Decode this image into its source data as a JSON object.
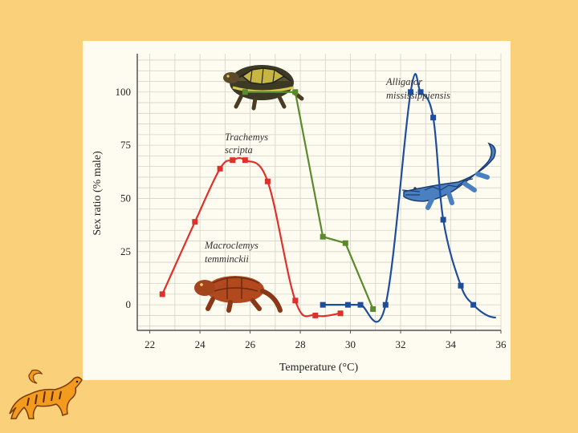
{
  "chart_data": {
    "type": "line",
    "title": "",
    "xlabel": "Temperature (°C)",
    "ylabel": "Sex ratio (% male)",
    "xlim": [
      21.5,
      36
    ],
    "ylim": [
      -12,
      118
    ],
    "xticks": [
      22,
      24,
      26,
      28,
      30,
      32,
      34,
      36
    ],
    "yticks": [
      0,
      25,
      50,
      75,
      100
    ],
    "grid": true,
    "legend": "none",
    "series": [
      {
        "name": "Macroclemys temminckii",
        "color": "#e0302a",
        "icon": "snapping-turtle-icon",
        "points": [
          [
            22.5,
            5
          ],
          [
            23.8,
            39
          ],
          [
            24.8,
            64
          ],
          [
            25.3,
            68
          ],
          [
            25.8,
            68
          ],
          [
            26.7,
            58
          ],
          [
            27.8,
            2
          ],
          [
            28.6,
            -5
          ],
          [
            29.6,
            -4
          ]
        ]
      },
      {
        "name": "Trachemys scripta",
        "color": "#5a8a2a",
        "icon": "box-turtle-icon",
        "points": [
          [
            25.8,
            100
          ],
          [
            27.8,
            100
          ],
          [
            28.9,
            32
          ],
          [
            29.8,
            29
          ],
          [
            30.9,
            -2
          ]
        ]
      },
      {
        "name": "Alligator mississippiensis",
        "color": "#1e4d9e",
        "icon": "alligator-icon",
        "points": [
          [
            28.9,
            0
          ],
          [
            29.9,
            0
          ],
          [
            30.4,
            0
          ],
          [
            31.4,
            0
          ],
          [
            32.4,
            100
          ],
          [
            32.8,
            100
          ],
          [
            33.3,
            88
          ],
          [
            33.7,
            40
          ],
          [
            34.4,
            9
          ],
          [
            34.9,
            0
          ]
        ]
      }
    ]
  },
  "logo": {
    "icon": "tiger-icon"
  }
}
